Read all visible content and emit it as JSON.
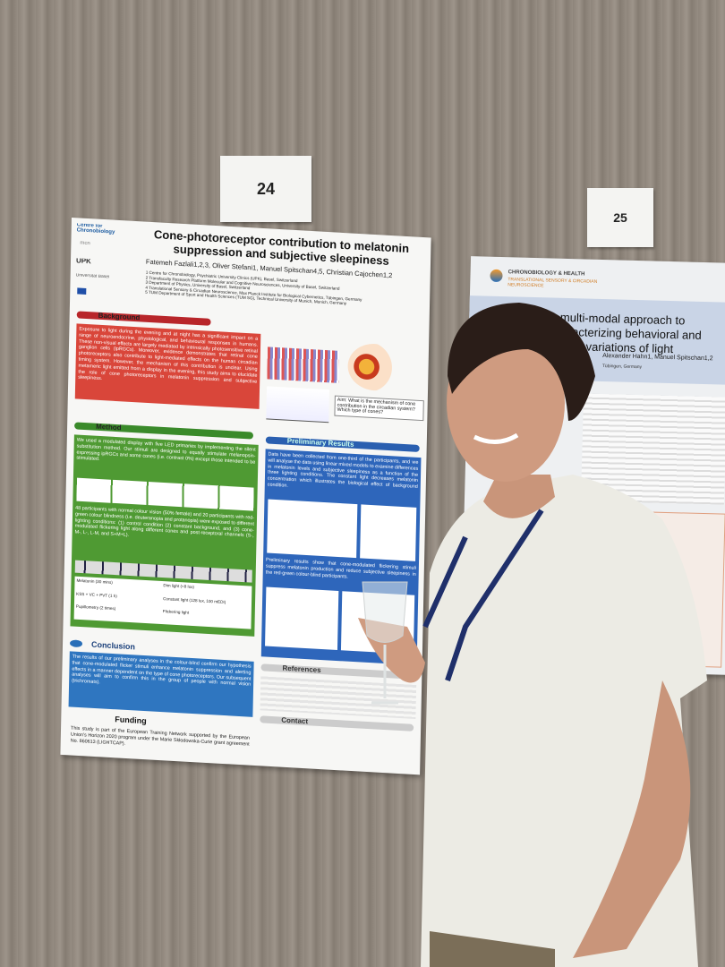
{
  "poster_numbers": [
    "24",
    "25"
  ],
  "poster": {
    "logos": [
      "Centre for Chronobiology",
      "mcn",
      "UPK",
      "Universität Basel"
    ],
    "title": "Cone-photoreceptor contribution to melatonin suppression and subjective sleepiness",
    "authors": "Fatemeh Fazlali1,2,3, Oliver Stefani1, Manuel Spitschan4,5, Christian Cajochen1,2",
    "affiliations": [
      "1 Centre for Chronobiology, Psychiatric University Clinics (UPK), Basel, Switzerland",
      "2 Transfaculty Research Platform Molecular and Cognitive Neurosciences, University of Basel, Switzerland",
      "3 Department of Physics, University of Basel, Switzerland",
      "4 Translational Sensory & Circadian Neuroscience, Max Planck Institute for Biological Cybernetics, Tübingen, Germany",
      "5 TUM Department of Sport and Health Sciences (TUM SG), Technical University of Munich, Munich, Germany"
    ],
    "background": {
      "heading": "Background",
      "text": "Exposure to light during the evening and at night has a significant impact on a range of neuroendocrine, physiological, and behavioural responses in humans. These non-visual effects are largely mediated by intrinsically photosensitive retinal ganglion cells (ipRGCs). Moreover, evidence demonstrates that retinal cone photoreceptors also contribute to light-mediated effects on the human circadian timing system. However, the mechanism of this contribution is unclear. Using metameric light emitted from a display in the evening, this study aims to elucidate the role of cone photoreceptors in melatonin suppression and subjective sleepiness."
    },
    "aim": "Aim: What is the mechanism of cone contribution in the circadian system? Which type of cones?",
    "method": {
      "heading": "Method",
      "text1": "We used a modulated display with five LED primaries by implementing the silent substitution method. Our stimuli are designed to equally stimulate melanopsin-expressing ipRGCs and some cones (i.e. contrast 0%) except those intended to be stimulated.",
      "text2": "48 participants with normal colour vision (50% female) and 20 participants with red-green colour blindness (i.e. deuteranopia and protanopia) were exposed to different lighting conditions: (1) control condition (2) constant background, and (3) cone-modulated flickering light along different cones and post-receptoral channels (S-, M-, L-, L-M, and S+M+L).",
      "legend": [
        "Melatonin (30 mins)",
        "KSS + VC + PVT (1 h)",
        "Pupillometry (2 times)",
        "Dim light (<8 lux)",
        "Constant light (128 lux, 100 mEDI)",
        "Flickering light"
      ]
    },
    "conclusion": {
      "heading": "Conclusion",
      "text": "The results of our preliminary analyses in the colour-blind confirm our hypothesis that cone-modulated flicker stimuli enhance melatonin suppression and alerting effects in a manner dependent on the type of cone photoreceptors. Our subsequent analyses will aim to confirm this in the group of people with normal vision (trichromats)."
    },
    "funding": {
      "heading": "Funding",
      "text": "This study is part of the European Training Network supported by the European Union's Horizon 2020 program under the Marie Skłodowska-Curie grant agreement No. 860613 (LIGHTCAP)."
    },
    "results": {
      "heading": "Preliminary Results",
      "text1": "Data have been collected from one-third of the participants, and we will analyse the data using linear mixed models to examine differences in melatonin levels and subjective sleepiness as a function of the three lighting conditions. The constant light decreases melatonin concentration which illustrates the biological effect of background condition.",
      "text2": "Preliminary results show that cone-modulated flickering stimuli suppress melatonin production and reduce subjective sleepiness in the red-green colour-blind participants."
    },
    "references": {
      "heading": "References"
    },
    "contact": {
      "heading": "Contact"
    }
  },
  "poster2": {
    "logo": "CHRONOBIOLOGY & HEALTH",
    "subtitle": "TRANSLATIONAL SENSORY & CIRCADIAN NEUROSCIENCE",
    "title": "A multi-modal approach to characterizing behavioral and spatial variations of light",
    "authors": "Alexander Hahn1, Manuel Spitschan1,2",
    "affiliation": "Tübingen, Germany"
  }
}
